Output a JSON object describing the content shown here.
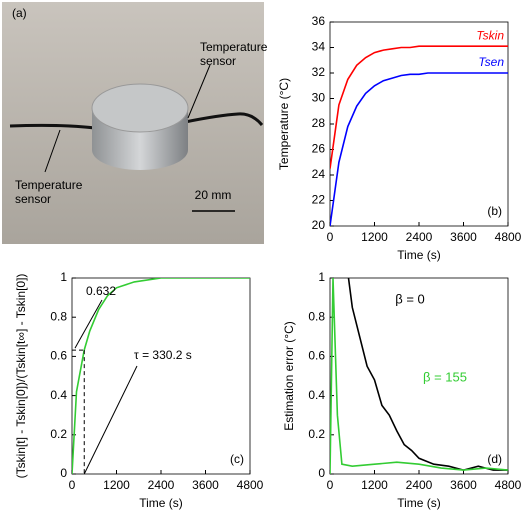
{
  "photo": {
    "panel_label": "(a)",
    "sensor_label_right": "Temperature sensor",
    "sensor_label_left": "Temperature sensor",
    "scale_label": "20 mm"
  },
  "chart_data": [
    {
      "type": "line",
      "panel_label": "(b)",
      "xlabel": "Time (s)",
      "ylabel": "Temperature (°C)",
      "xlim": [
        0,
        4800
      ],
      "xticks": [
        0,
        1200,
        2400,
        3600,
        4800
      ],
      "ylim": [
        20,
        36
      ],
      "yticks": [
        20,
        22,
        24,
        26,
        28,
        30,
        32,
        34,
        36
      ],
      "x": [
        0,
        240,
        480,
        720,
        960,
        1200,
        1440,
        1680,
        1920,
        2160,
        2400,
        2640,
        2880,
        3120,
        3360,
        3600,
        3840,
        4080,
        4320,
        4560,
        4800
      ],
      "series": [
        {
          "name": "Tskin",
          "color": "#ff0000",
          "values": [
            24.5,
            29.5,
            31.5,
            32.6,
            33.2,
            33.6,
            33.8,
            33.9,
            34.0,
            34.0,
            34.1,
            34.1,
            34.1,
            34.1,
            34.1,
            34.1,
            34.1,
            34.1,
            34.1,
            34.1,
            34.1
          ]
        },
        {
          "name": "Tsen",
          "color": "#0000ff",
          "values": [
            20.0,
            25.0,
            27.8,
            29.4,
            30.4,
            31.0,
            31.4,
            31.6,
            31.8,
            31.9,
            31.9,
            32.0,
            32.0,
            32.0,
            32.0,
            32.0,
            32.0,
            32.0,
            32.0,
            32.0,
            32.0
          ]
        }
      ]
    },
    {
      "type": "line",
      "panel_label": "(c)",
      "xlabel": "Time (s)",
      "ylabel": "(Tskin[t] - Tskin[0])/(Tskin[t∞] - Tskin[0])",
      "xlim": [
        0,
        4800
      ],
      "xticks": [
        0,
        1200,
        2400,
        3600,
        4800
      ],
      "ylim": [
        0,
        1
      ],
      "yticks": [
        0,
        0.2,
        0.4,
        0.6,
        0.8,
        1
      ],
      "x": [
        0,
        120,
        330,
        480,
        720,
        960,
        1200,
        1680,
        2400,
        3600,
        4800
      ],
      "series": [
        {
          "color": "#33cc33",
          "values": [
            0,
            0.42,
            0.632,
            0.73,
            0.84,
            0.91,
            0.95,
            0.98,
            1,
            1,
            1
          ]
        }
      ],
      "level_label": "0.632",
      "tau_label": "τ = 330.2 s",
      "marker": {
        "x": 330.2,
        "y": 0.632
      }
    },
    {
      "type": "line",
      "panel_label": "(d)",
      "xlabel": "Time (s)",
      "ylabel": "Estimation error (°C)",
      "xlim": [
        0,
        4800
      ],
      "xticks": [
        0,
        1200,
        2400,
        3600,
        4800
      ],
      "ylim": [
        0,
        1
      ],
      "yticks": [
        0,
        0.2,
        0.4,
        0.6,
        0.8,
        1
      ],
      "series": [
        {
          "name": "β = 0",
          "color": "#000000",
          "x": [
            500,
            600,
            800,
            1000,
            1200,
            1400,
            1600,
            1800,
            2000,
            2200,
            2400,
            2800,
            3200,
            3600,
            4000,
            4400,
            4800
          ],
          "values": [
            1.0,
            0.85,
            0.7,
            0.55,
            0.48,
            0.35,
            0.3,
            0.22,
            0.15,
            0.12,
            0.08,
            0.05,
            0.04,
            0.02,
            0.04,
            0.02,
            0.02
          ]
        },
        {
          "name": "β = 155",
          "color": "#33cc33",
          "x": [
            0,
            80,
            200,
            320,
            600,
            1200,
            1800,
            2400,
            3000,
            3600,
            4200,
            4800
          ],
          "values": [
            0,
            1.0,
            0.3,
            0.05,
            0.04,
            0.05,
            0.06,
            0.05,
            0.03,
            0.02,
            0.03,
            0.02
          ]
        }
      ]
    }
  ]
}
